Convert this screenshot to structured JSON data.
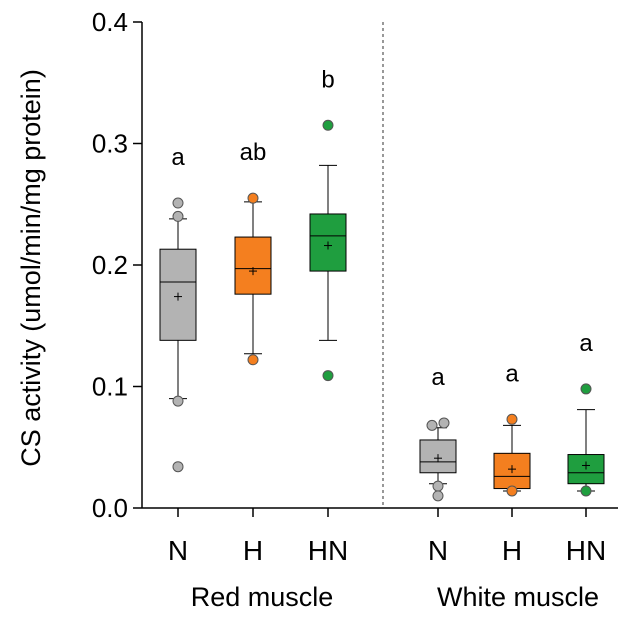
{
  "chart_data": {
    "type": "box",
    "ylabel": "CS activity (umol/min/mg protein)",
    "ylim": [
      0,
      0.4
    ],
    "yticks": [
      0.0,
      0.1,
      0.2,
      0.3,
      0.4
    ],
    "ytick_labels": [
      "0.0",
      "0.1",
      "0.2",
      "0.3",
      "0.4"
    ],
    "groups": [
      {
        "label": "Red muscle",
        "boxes": [
          {
            "category": "N",
            "color": "#b3b3b3",
            "q1": 0.138,
            "median": 0.186,
            "q3": 0.213,
            "whisker_low": 0.09,
            "whisker_high": 0.238,
            "mean": 0.174,
            "outliers": [
              0.251,
              0.24,
              0.088,
              0.034
            ],
            "significance": "a"
          },
          {
            "category": "H",
            "color": "#f47f1f",
            "q1": 0.176,
            "median": 0.197,
            "q3": 0.223,
            "whisker_low": 0.127,
            "whisker_high": 0.252,
            "mean": 0.195,
            "outliers": [
              0.255,
              0.122
            ],
            "significance": "ab"
          },
          {
            "category": "HN",
            "color": "#1f9e3f",
            "q1": 0.195,
            "median": 0.224,
            "q3": 0.242,
            "whisker_low": 0.138,
            "whisker_high": 0.282,
            "mean": 0.216,
            "outliers": [
              0.315,
              0.109
            ],
            "significance": "b"
          }
        ]
      },
      {
        "label": "White muscle",
        "boxes": [
          {
            "category": "N",
            "color": "#b3b3b3",
            "q1": 0.029,
            "median": 0.038,
            "q3": 0.056,
            "whisker_low": 0.02,
            "whisker_high": 0.066,
            "mean": 0.041,
            "outliers": [
              0.068,
              0.07,
              0.018,
              0.01
            ],
            "significance": "a"
          },
          {
            "category": "H",
            "color": "#f47f1f",
            "q1": 0.016,
            "median": 0.026,
            "q3": 0.045,
            "whisker_low": 0.014,
            "whisker_high": 0.068,
            "mean": 0.032,
            "outliers": [
              0.073,
              0.014
            ],
            "significance": "a"
          },
          {
            "category": "HN",
            "color": "#1f9e3f",
            "q1": 0.02,
            "median": 0.029,
            "q3": 0.044,
            "whisker_low": 0.014,
            "whisker_high": 0.081,
            "mean": 0.035,
            "outliers": [
              0.098,
              0.014
            ],
            "significance": "a"
          }
        ]
      }
    ],
    "divider": "dashed line between Red muscle and White muscle",
    "grid": false
  }
}
